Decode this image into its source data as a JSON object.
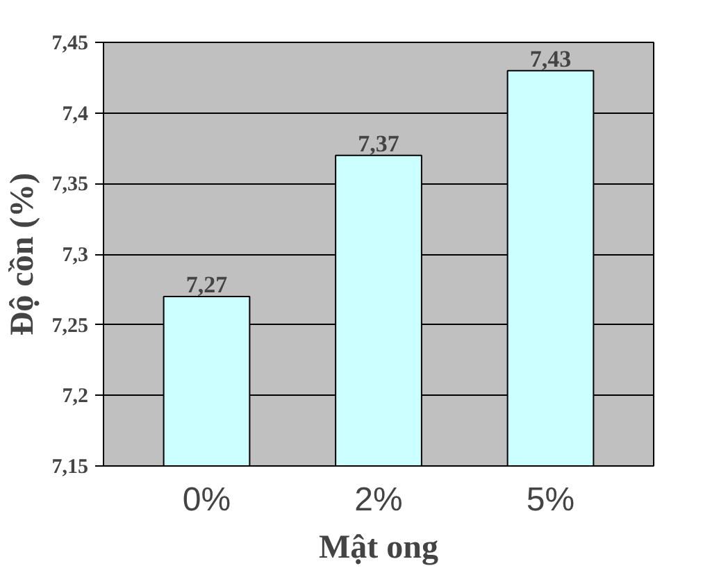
{
  "chart_data": {
    "type": "bar",
    "xlabel": "Mật ong",
    "ylabel": "Độ cồn (%)",
    "categories": [
      "0%",
      "2%",
      "5%"
    ],
    "values": [
      7.27,
      7.37,
      7.43
    ],
    "color": "#ccffff",
    "value_labels": [
      "7,27",
      "7,37",
      "7,43"
    ],
    "ylim": [
      7.15,
      7.45
    ],
    "yticks": [
      {
        "value": 7.15,
        "label": "7,15"
      },
      {
        "value": 7.2,
        "label": "7,2"
      },
      {
        "value": 7.25,
        "label": "7,25"
      },
      {
        "value": 7.3,
        "label": "7,3"
      },
      {
        "value": 7.35,
        "label": "7,35"
      },
      {
        "value": 7.4,
        "label": "7,4"
      },
      {
        "value": 7.45,
        "label": "7,45"
      }
    ],
    "grid": "y"
  }
}
